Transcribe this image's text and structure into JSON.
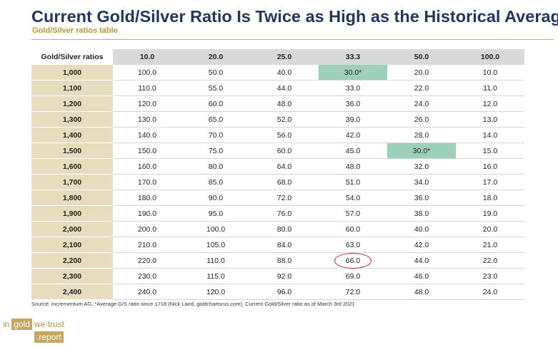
{
  "title": "Current Gold/Silver Ratio Is Twice as High as the Historical Average",
  "subtitle": "Gold/Silver ratios table",
  "table": {
    "corner_label": "Gold/Silver ratios",
    "columns": [
      "10.0",
      "20.0",
      "25.0",
      "33.3",
      "50.0",
      "100.0"
    ],
    "rows": [
      {
        "label": "1,000",
        "cells": [
          "100.0",
          "50.0",
          "40.0",
          "30.0*",
          "20.0",
          "10.0"
        ]
      },
      {
        "label": "1,100",
        "cells": [
          "110.0",
          "55.0",
          "44.0",
          "33.0",
          "22.0",
          "11.0"
        ]
      },
      {
        "label": "1,200",
        "cells": [
          "120.0",
          "60.0",
          "48.0",
          "36.0",
          "24.0",
          "12.0"
        ]
      },
      {
        "label": "1,300",
        "cells": [
          "130.0",
          "65.0",
          "52.0",
          "39.0",
          "26.0",
          "13.0"
        ]
      },
      {
        "label": "1,400",
        "cells": [
          "140.0",
          "70.0",
          "56.0",
          "42.0",
          "28.0",
          "14.0"
        ]
      },
      {
        "label": "1,500",
        "cells": [
          "150.0",
          "75.0",
          "60.0",
          "45.0",
          "30.0*",
          "15.0"
        ]
      },
      {
        "label": "1,600",
        "cells": [
          "160.0",
          "80.0",
          "64.0",
          "48.0",
          "32.0",
          "16.0"
        ]
      },
      {
        "label": "1,700",
        "cells": [
          "170.0",
          "85.0",
          "68.0",
          "51.0",
          "34.0",
          "17.0"
        ]
      },
      {
        "label": "1,800",
        "cells": [
          "180.0",
          "90.0",
          "72.0",
          "54.0",
          "36.0",
          "18.0"
        ]
      },
      {
        "label": "1,900",
        "cells": [
          "190.0",
          "95.0",
          "76.0",
          "57.0",
          "38.0",
          "19.0"
        ]
      },
      {
        "label": "2,000",
        "cells": [
          "200.0",
          "100.0",
          "80.0",
          "60.0",
          "40.0",
          "20.0"
        ]
      },
      {
        "label": "2,100",
        "cells": [
          "210.0",
          "105.0",
          "84.0",
          "63.0",
          "42.0",
          "21.0"
        ]
      },
      {
        "label": "2,200",
        "cells": [
          "220.0",
          "110.0",
          "88.0",
          "66.0",
          "44.0",
          "22.0"
        ]
      },
      {
        "label": "2,300",
        "cells": [
          "230.0",
          "115.0",
          "92.0",
          "69.0",
          "46.0",
          "23.0"
        ]
      },
      {
        "label": "2,400",
        "cells": [
          "240.0",
          "120.0",
          "96.0",
          "72.0",
          "48.0",
          "24.0"
        ]
      }
    ]
  },
  "source": "Source: Incrementum AG, *Average G/S ratio since 1718 (Nick Laird, goldchartsrus.com), Current Gold/Silver ratio as of March 3rd 2021",
  "logo": {
    "part1": "in",
    "part2": "gold",
    "part3": "we trust",
    "part4": ".report"
  },
  "colors": {
    "title": "#22375f",
    "accent_gold": "#b5963e",
    "row_header_bg": "#e8dcbf",
    "header_bg": "#d9d9d9",
    "highlight": "#9dd0b9",
    "circle": "#c01f4a"
  }
}
